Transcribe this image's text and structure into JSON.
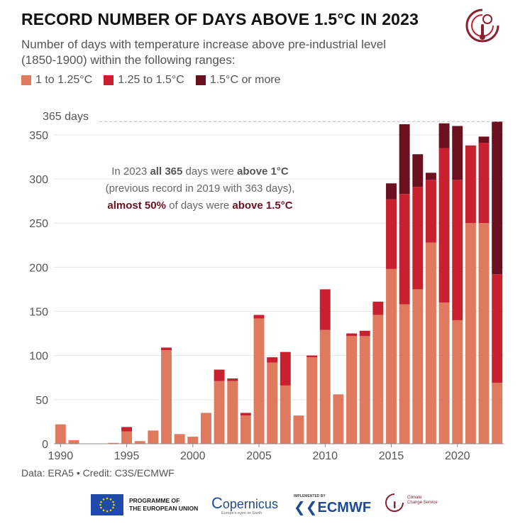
{
  "header": {
    "title": "RECORD NUMBER OF DAYS ABOVE 1.5°C IN 2023",
    "subtitle": "Number of days with temperature increase above pre-industrial level (1850-1900) within the following ranges:"
  },
  "annotation": {
    "line1_pre": "In 2023 ",
    "line1_bold1": "all 365",
    "line1_mid": " days were ",
    "line1_bold2": "above 1°C",
    "line2": "(previous record in 2019 with 363 days),",
    "line3_bold1": "almost 50%",
    "line3_mid": " of days were ",
    "line3_bold2": "above 1.5°C"
  },
  "footer": {
    "credit": "Data: ERA5 • Credit: C3S/ECMWF",
    "eu_line1": "PROGRAMME OF",
    "eu_line2": "THE EUROPEAN UNION",
    "copernicus": "opernicus",
    "copernicus_c": "C",
    "copernicus_sub": "Europe's eyes on Earth",
    "implemented": "IMPLEMENTED BY",
    "ecmwf": "ECMWF",
    "c3s_line1": "Climate",
    "c3s_line2": "Change Service"
  },
  "colors": {
    "low": "#e07a5f",
    "mid": "#c9202f",
    "high": "#6b1020",
    "grid": "#e6e6e6",
    "ref_line": "#bbbbbb"
  },
  "chart_data": {
    "type": "bar",
    "stacked": true,
    "x": [
      1990,
      1991,
      1992,
      1993,
      1994,
      1995,
      1996,
      1997,
      1998,
      1999,
      2000,
      2001,
      2002,
      2003,
      2004,
      2005,
      2006,
      2007,
      2008,
      2009,
      2010,
      2011,
      2012,
      2013,
      2014,
      2015,
      2016,
      2017,
      2018,
      2019,
      2020,
      2021,
      2022,
      2023
    ],
    "series": [
      {
        "name": "1 to 1.25°C",
        "values": [
          22,
          4,
          0,
          0,
          1,
          14,
          3,
          15,
          106,
          11,
          8,
          35,
          71,
          71,
          32,
          142,
          92,
          66,
          32,
          98,
          129,
          56,
          122,
          122,
          146,
          198,
          158,
          175,
          228,
          160,
          140,
          250,
          250,
          69
        ]
      },
      {
        "name": "1.25 to 1.5°C",
        "values": [
          0,
          0,
          0,
          0,
          0,
          5,
          0,
          0,
          3,
          0,
          0,
          0,
          13,
          3,
          3,
          4,
          6,
          38,
          0,
          2,
          46,
          0,
          3,
          6,
          15,
          79,
          125,
          116,
          71,
          175,
          159,
          88,
          91,
          123
        ]
      },
      {
        "name": "1.5°C or more",
        "values": [
          0,
          0,
          0,
          0,
          0,
          0,
          0,
          0,
          0,
          0,
          0,
          0,
          0,
          0,
          0,
          0,
          0,
          0,
          0,
          0,
          0,
          0,
          0,
          0,
          0,
          18,
          79,
          37,
          8,
          28,
          61,
          0,
          7,
          173
        ]
      }
    ],
    "ylim": [
      0,
      370
    ],
    "yticks": [
      0,
      50,
      100,
      150,
      200,
      250,
      300,
      350
    ],
    "xticks": [
      1990,
      1995,
      2000,
      2005,
      2010,
      2015,
      2020
    ],
    "reference_line": {
      "value": 365,
      "label": "365 days"
    },
    "grid": true,
    "legend_position": "top-left"
  }
}
